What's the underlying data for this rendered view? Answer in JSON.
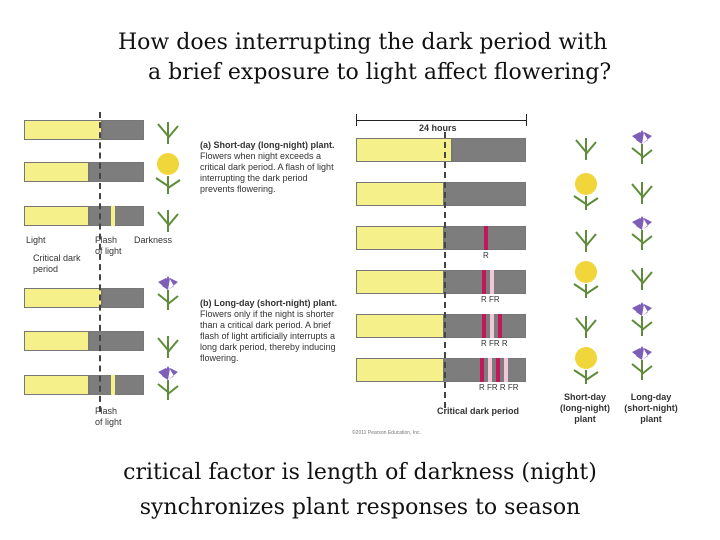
{
  "title": {
    "line1": "How does interrupting the dark period with",
    "line2": "a brief exposure to light affect flowering?"
  },
  "left_panel": {
    "label_light": "Light",
    "label_flash_of_light": "Flash of light",
    "label_darkness": "Darkness",
    "label_critical_dark_period": "Critical dark period",
    "label_flash_of_light_bottom": "Flash of light",
    "panel_a_heading": "(a) Short-day (long-night) plant.",
    "panel_a_text": "Flowers when night exceeds a critical dark period. A flash of light interrupting the dark period prevents flowering.",
    "panel_b_heading": "(b) Long-day (short-night) plant.",
    "panel_b_text": "Flowers only if the night is shorter than a critical dark period. A brief flash of light artificially interrupts a long dark period, thereby inducing flowering."
  },
  "right_panel": {
    "hours_label": "24 hours",
    "critical_dark_period_label": "Critical dark period",
    "flash_sequences": [
      "R",
      "R FR",
      "R FR R",
      "R FR R FR"
    ],
    "column_short_day": "Short-day (long-night) plant",
    "column_long_day": "Long-day (short-night) plant",
    "credit": "©2011 Pearson Education, Inc."
  },
  "caption": {
    "line1": "critical factor is length of  darkness (night)",
    "line2": "synchronizes plant responses to season"
  },
  "colors": {
    "light": "#f6f08a",
    "dark": "#7d7d7d",
    "red_flash": "#c2185b",
    "far_red_flash": "#f3c6d9",
    "dandelion": "#f0d63a",
    "iris": "#7e5fb7",
    "leaf": "#5e8c3a"
  }
}
